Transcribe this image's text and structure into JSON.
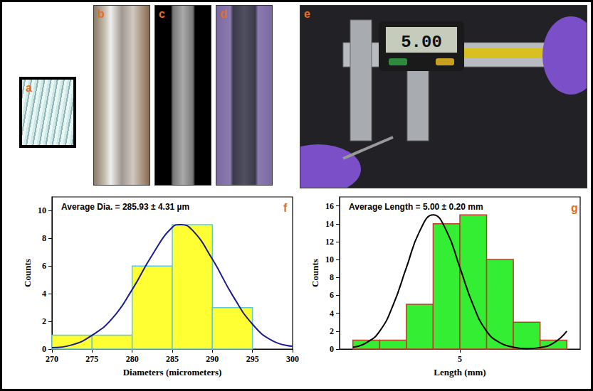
{
  "photo_panels": [
    {
      "label": "a"
    },
    {
      "label": "b"
    },
    {
      "label": "c"
    },
    {
      "label": "d"
    },
    {
      "label": "e",
      "display": "5.00"
    }
  ],
  "chart_data": [
    {
      "type": "histogram",
      "panel": "f",
      "annotation": "Average Dia. = 285.93 ± 4.31 µm",
      "xlabel": "Diameters (micrometers)",
      "ylabel": "Counts",
      "series": [
        {
          "type": "histogram",
          "bins": [
            270,
            275,
            280,
            285,
            290,
            295
          ],
          "values": [
            1,
            1,
            6,
            9,
            3
          ],
          "color": "#ffff33"
        },
        {
          "type": "line",
          "x": [
            270,
            272.5,
            275,
            277.5,
            280,
            282.5,
            285,
            286,
            287.5,
            290,
            292.5,
            295,
            297.5,
            300
          ],
          "values": [
            0.1,
            0.3,
            1.0,
            2.2,
            4.3,
            6.8,
            8.8,
            9.0,
            8.6,
            6.5,
            3.9,
            1.8,
            0.6,
            0.2
          ],
          "color": "#1c1c8c"
        }
      ],
      "xlim": [
        270,
        300
      ],
      "xticks": [
        270,
        275,
        280,
        285,
        290,
        295,
        300
      ],
      "ylim": [
        0,
        11
      ],
      "yticks": [
        0,
        2,
        4,
        6,
        8,
        10
      ],
      "grid": false
    },
    {
      "type": "histogram",
      "panel": "g",
      "annotation": "Average Length = 5.00 ± 0.20 mm",
      "xlabel": "Length (mm)",
      "ylabel": "Counts",
      "series": [
        {
          "type": "histogram",
          "bins": [
            4.2,
            4.4,
            4.6,
            4.8,
            5.0,
            5.2,
            5.4,
            5.6,
            5.8
          ],
          "values": [
            1,
            1,
            5,
            14,
            15,
            10,
            3,
            1
          ],
          "color": "#33ee33"
        },
        {
          "type": "line",
          "x": [
            4.2,
            4.3,
            4.4,
            4.5,
            4.6,
            4.7,
            4.8,
            4.9,
            5.0,
            5.1,
            5.2,
            5.3,
            5.4,
            5.5,
            5.6,
            5.7,
            5.8
          ],
          "values": [
            0.2,
            0.7,
            2.0,
            4.9,
            9.1,
            13.2,
            15.0,
            13.2,
            9.1,
            4.9,
            2.0,
            0.7,
            0.2,
            0.03,
            0.17,
            0.66,
            2.0
          ],
          "color": "#000000"
        }
      ],
      "xlim": [
        4.1,
        5.9
      ],
      "xticks": [
        5
      ],
      "ylim": [
        0,
        17
      ],
      "yticks": [
        0,
        2,
        4,
        6,
        8,
        10,
        12,
        14,
        16
      ],
      "grid": false
    }
  ]
}
